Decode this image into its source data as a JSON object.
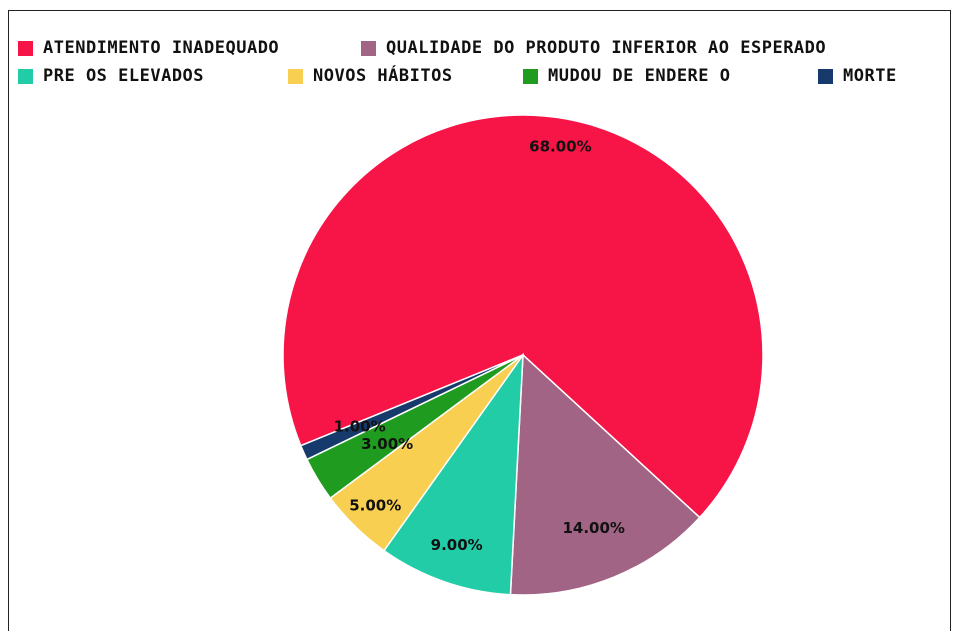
{
  "chart_data": {
    "type": "pie",
    "series": [
      {
        "name": "ATENDIMENTO INADEQUADO",
        "value": 68.0,
        "label": "68.00%",
        "color": "#f71447"
      },
      {
        "name": "QUALIDADE DO PRODUTO INFERIOR AO ESPERADO",
        "value": 14.0,
        "label": "14.00%",
        "color": "#a16485"
      },
      {
        "name": "PRE OS ELEVADOS",
        "value": 9.0,
        "label": "9.00%",
        "color": "#21cca7"
      },
      {
        "name": "NOVOS HÁBITOS",
        "value": 5.0,
        "label": "5.00%",
        "color": "#f8cf50"
      },
      {
        "name": "MUDOU DE ENDERE O",
        "value": 3.0,
        "label": "3.00%",
        "color": "#1f9b1f"
      },
      {
        "name": "MORTE",
        "value": 1.0,
        "label": "1.00%",
        "color": "#153a6b"
      }
    ],
    "legend_position": "top",
    "start_angle_note": "clockwise"
  }
}
